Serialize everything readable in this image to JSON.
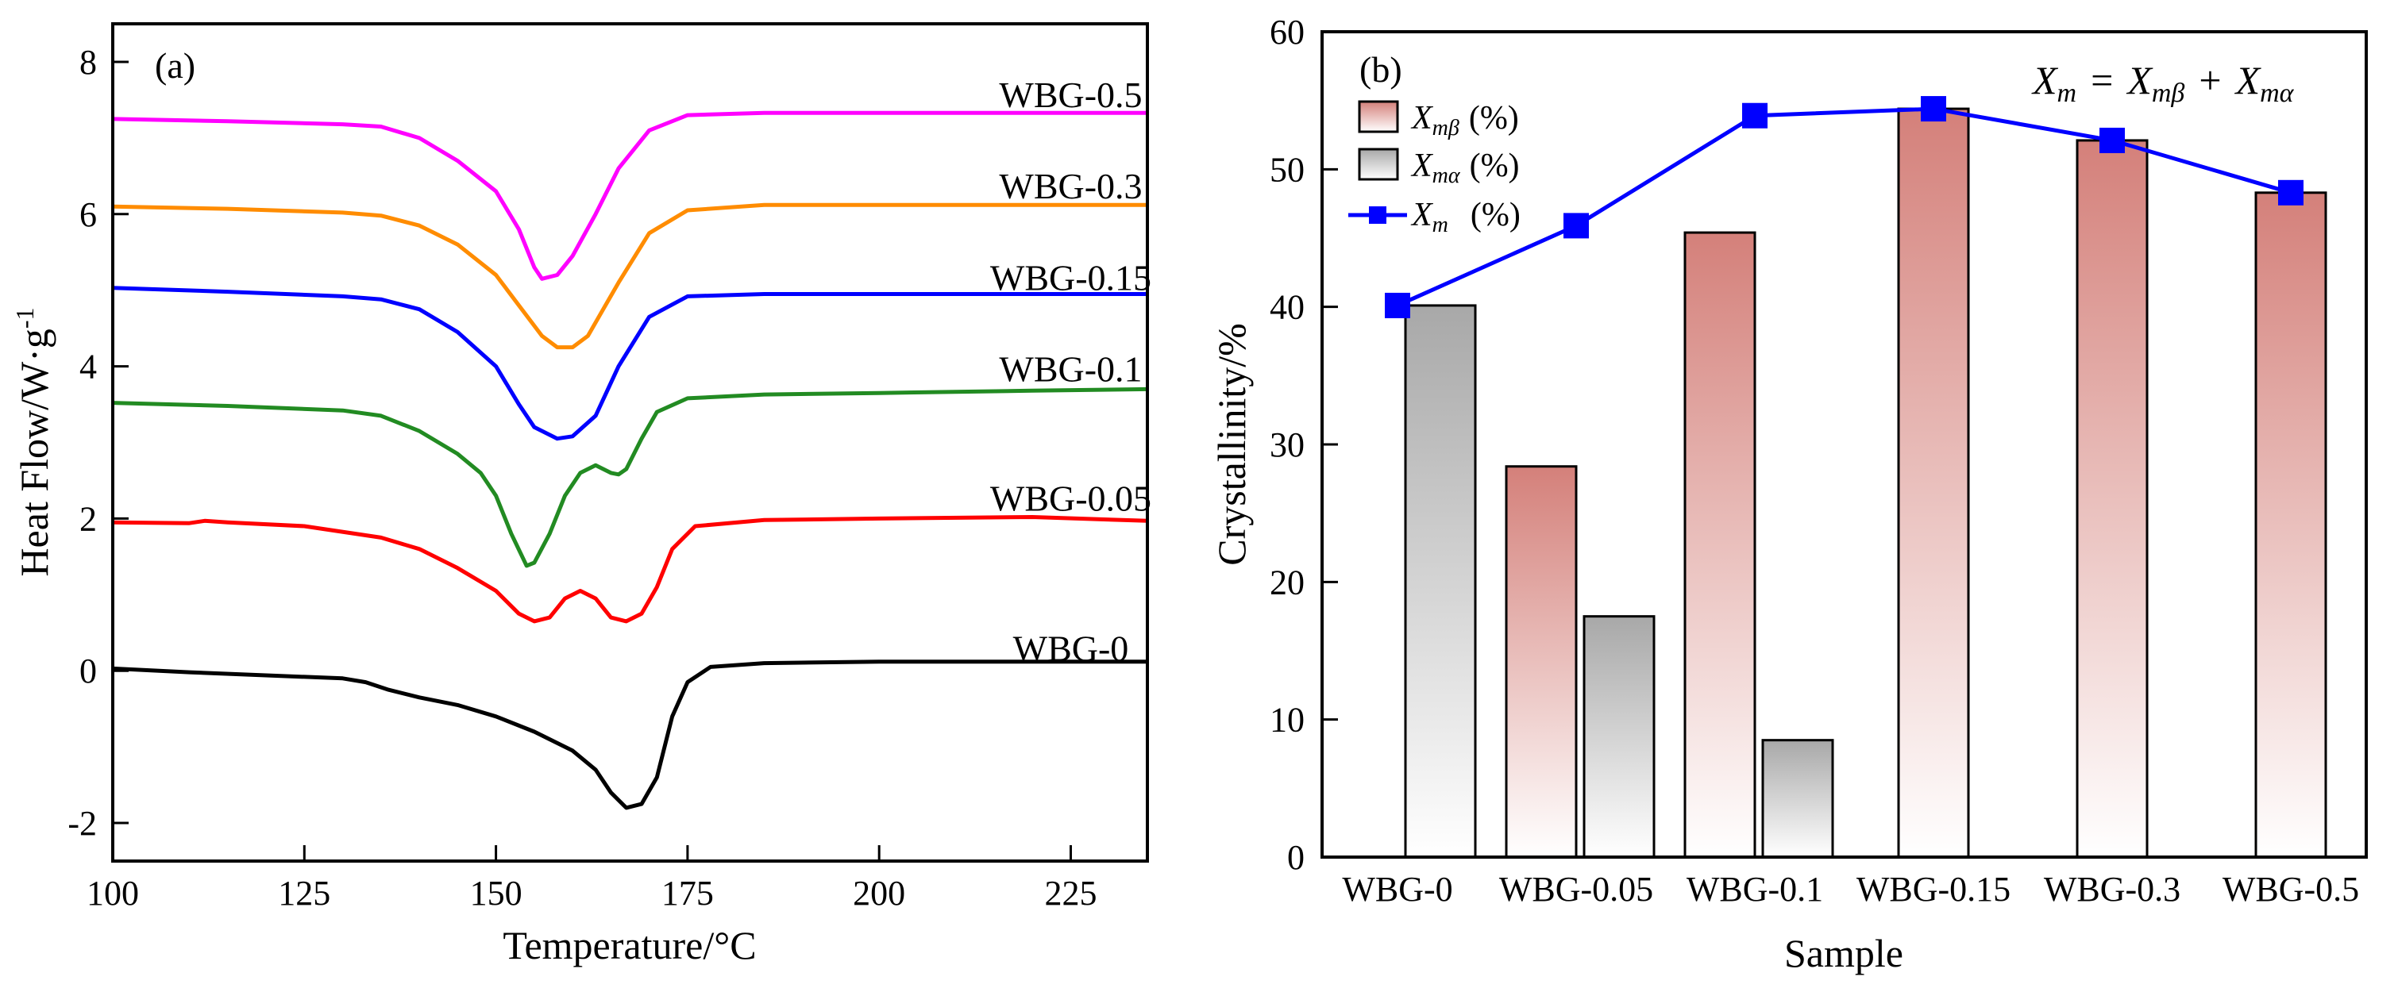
{
  "chart_data": [
    {
      "type": "line",
      "panel_label": "(a)",
      "xlabel": "Temperature/°C",
      "ylabel": "Heat Flow/W·g",
      "ylabel_sup": "-1",
      "xlim": [
        100,
        235
      ],
      "ylim": [
        -2.5,
        8.5
      ],
      "xticks": [
        100,
        125,
        150,
        175,
        200,
        225
      ],
      "yticks": [
        -2,
        0,
        2,
        4,
        6,
        8
      ],
      "series": [
        {
          "name": "WBG-0.5",
          "color": "#ff00ff",
          "label_pos": [
            225,
            7.55
          ],
          "points": [
            [
              100,
              7.25
            ],
            [
              115,
              7.22
            ],
            [
              130,
              7.18
            ],
            [
              135,
              7.15
            ],
            [
              140,
              7.0
            ],
            [
              145,
              6.7
            ],
            [
              150,
              6.3
            ],
            [
              153,
              5.8
            ],
            [
              155,
              5.3
            ],
            [
              156,
              5.15
            ],
            [
              158,
              5.2
            ],
            [
              160,
              5.45
            ],
            [
              163,
              6.0
            ],
            [
              166,
              6.6
            ],
            [
              170,
              7.1
            ],
            [
              175,
              7.3
            ],
            [
              185,
              7.33
            ],
            [
              200,
              7.33
            ],
            [
              220,
              7.33
            ],
            [
              235,
              7.33
            ]
          ]
        },
        {
          "name": "WBG-0.3",
          "color": "#ff8c00",
          "label_pos": [
            225,
            6.35
          ],
          "points": [
            [
              100,
              6.1
            ],
            [
              115,
              6.07
            ],
            [
              130,
              6.02
            ],
            [
              135,
              5.98
            ],
            [
              140,
              5.85
            ],
            [
              145,
              5.6
            ],
            [
              150,
              5.2
            ],
            [
              153,
              4.8
            ],
            [
              156,
              4.4
            ],
            [
              158,
              4.25
            ],
            [
              160,
              4.25
            ],
            [
              162,
              4.4
            ],
            [
              166,
              5.1
            ],
            [
              170,
              5.75
            ],
            [
              175,
              6.05
            ],
            [
              185,
              6.12
            ],
            [
              200,
              6.12
            ],
            [
              220,
              6.12
            ],
            [
              235,
              6.12
            ]
          ]
        },
        {
          "name": "WBG-0.15",
          "color": "#0000ff",
          "label_pos": [
            225,
            5.15
          ],
          "points": [
            [
              100,
              5.03
            ],
            [
              115,
              4.98
            ],
            [
              130,
              4.92
            ],
            [
              135,
              4.88
            ],
            [
              140,
              4.75
            ],
            [
              145,
              4.45
            ],
            [
              150,
              4.0
            ],
            [
              153,
              3.5
            ],
            [
              155,
              3.2
            ],
            [
              158,
              3.05
            ],
            [
              160,
              3.08
            ],
            [
              163,
              3.35
            ],
            [
              166,
              4.0
            ],
            [
              170,
              4.65
            ],
            [
              175,
              4.92
            ],
            [
              185,
              4.95
            ],
            [
              200,
              4.95
            ],
            [
              220,
              4.95
            ],
            [
              235,
              4.95
            ]
          ]
        },
        {
          "name": "WBG-0.1",
          "color": "#228b22",
          "label_pos": [
            225,
            3.95
          ],
          "points": [
            [
              100,
              3.52
            ],
            [
              115,
              3.48
            ],
            [
              130,
              3.42
            ],
            [
              135,
              3.35
            ],
            [
              140,
              3.15
            ],
            [
              145,
              2.85
            ],
            [
              148,
              2.6
            ],
            [
              150,
              2.3
            ],
            [
              152,
              1.8
            ],
            [
              154,
              1.38
            ],
            [
              155,
              1.42
            ],
            [
              157,
              1.8
            ],
            [
              159,
              2.3
            ],
            [
              161,
              2.6
            ],
            [
              163,
              2.7
            ],
            [
              165,
              2.6
            ],
            [
              166,
              2.58
            ],
            [
              167,
              2.65
            ],
            [
              169,
              3.05
            ],
            [
              171,
              3.4
            ],
            [
              175,
              3.58
            ],
            [
              185,
              3.63
            ],
            [
              200,
              3.65
            ],
            [
              220,
              3.68
            ],
            [
              235,
              3.7
            ]
          ]
        },
        {
          "name": "WBG-0.05",
          "color": "#ff0000",
          "label_pos": [
            225,
            2.25
          ],
          "points": [
            [
              100,
              1.95
            ],
            [
              110,
              1.94
            ],
            [
              112,
              1.97
            ],
            [
              115,
              1.95
            ],
            [
              125,
              1.9
            ],
            [
              135,
              1.75
            ],
            [
              140,
              1.6
            ],
            [
              145,
              1.35
            ],
            [
              150,
              1.05
            ],
            [
              153,
              0.75
            ],
            [
              155,
              0.65
            ],
            [
              157,
              0.7
            ],
            [
              159,
              0.95
            ],
            [
              161,
              1.05
            ],
            [
              163,
              0.95
            ],
            [
              165,
              0.7
            ],
            [
              167,
              0.65
            ],
            [
              169,
              0.75
            ],
            [
              171,
              1.1
            ],
            [
              173,
              1.6
            ],
            [
              176,
              1.9
            ],
            [
              185,
              1.98
            ],
            [
              200,
              2.0
            ],
            [
              220,
              2.02
            ],
            [
              235,
              1.97
            ]
          ]
        },
        {
          "name": "WBG-0",
          "color": "#000000",
          "label_pos": [
            225,
            0.28
          ],
          "points": [
            [
              100,
              0.03
            ],
            [
              110,
              -0.02
            ],
            [
              120,
              -0.06
            ],
            [
              130,
              -0.1
            ],
            [
              133,
              -0.15
            ],
            [
              136,
              -0.25
            ],
            [
              140,
              -0.35
            ],
            [
              145,
              -0.45
            ],
            [
              150,
              -0.6
            ],
            [
              155,
              -0.8
            ],
            [
              160,
              -1.05
            ],
            [
              163,
              -1.3
            ],
            [
              165,
              -1.6
            ],
            [
              167,
              -1.8
            ],
            [
              169,
              -1.75
            ],
            [
              171,
              -1.4
            ],
            [
              173,
              -0.6
            ],
            [
              175,
              -0.15
            ],
            [
              178,
              0.05
            ],
            [
              185,
              0.1
            ],
            [
              200,
              0.12
            ],
            [
              220,
              0.12
            ],
            [
              235,
              0.12
            ]
          ]
        }
      ]
    },
    {
      "type": "bar",
      "panel_label": "(b)",
      "xlabel": "Sample",
      "ylabel": "Crystallinity/%",
      "ylim": [
        0,
        60
      ],
      "yticks": [
        0,
        10,
        20,
        30,
        40,
        50,
        60
      ],
      "categories": [
        "WBG-0",
        "WBG-0.05",
        "WBG-0.1",
        "WBG-0.15",
        "WBG-0.3",
        "WBG-0.5"
      ],
      "series": [
        {
          "name": "Xmβ (%)",
          "kind": "bar",
          "color": "#d4807a",
          "values": [
            0,
            28.4,
            45.4,
            54.4,
            52.1,
            48.3
          ]
        },
        {
          "name": "Xmα (%)",
          "kind": "bar",
          "color": "#a0a0a0",
          "values": [
            40.1,
            17.5,
            8.5,
            0,
            0,
            0
          ]
        },
        {
          "name": "Xm (%)",
          "kind": "line",
          "color": "#0000ff",
          "values": [
            40.1,
            45.9,
            53.9,
            54.4,
            52.1,
            48.3
          ]
        }
      ],
      "legend": [
        {
          "symbol": "X",
          "sub": "mβ",
          "suffix": "(%)"
        },
        {
          "symbol": "X",
          "sub": "mα",
          "suffix": "(%)"
        },
        {
          "symbol": "X",
          "sub": "m",
          "suffix": "(%)"
        }
      ],
      "equation": {
        "lhs": "X",
        "lhs_sub": "m",
        "eq": "=",
        "t1": "X",
        "t1_sub": "mβ",
        "plus": "+",
        "t2": "X",
        "t2_sub": "mα"
      }
    }
  ]
}
